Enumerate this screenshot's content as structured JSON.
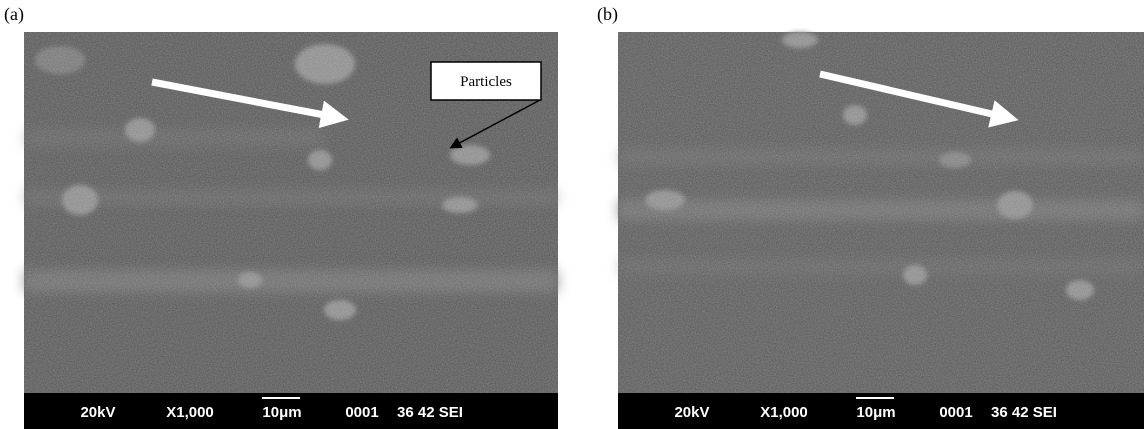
{
  "panels": [
    {
      "label": "(a)",
      "info": {
        "voltage": "20kV",
        "magnification": "X1,000",
        "scale": "10μm",
        "number": "0001",
        "code": "36 42 SEI"
      },
      "callout": "Particles"
    },
    {
      "label": "(b)",
      "info": {
        "voltage": "20kV",
        "magnification": "X1,000",
        "scale": "10μm",
        "number": "0001",
        "code": "36 42 SEI"
      }
    }
  ]
}
